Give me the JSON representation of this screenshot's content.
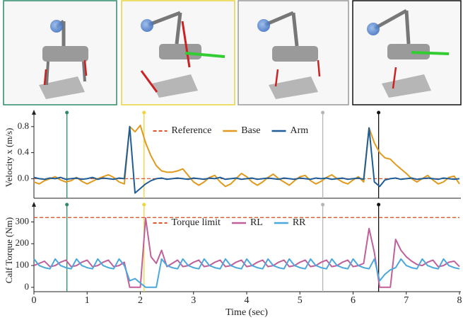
{
  "chart_data": [
    {
      "type": "line",
      "y_label": "Velocity x (m/s)",
      "xlim": [
        0,
        8
      ],
      "ylim": [
        -0.3,
        0.95
      ],
      "yticks": [
        {
          "value": 0,
          "label": "0.0"
        },
        0.4,
        0.8
      ],
      "legend": "upper center",
      "reference_line": {
        "name": "Reference",
        "y": 0,
        "color": "#d9572b"
      },
      "event_lines": [
        {
          "x": 0.62,
          "color": "#2e8b6a"
        },
        {
          "x": 2.07,
          "color": "#f2d33a"
        },
        {
          "x": 5.43,
          "color": "#b5b5b5"
        },
        {
          "x": 6.48,
          "color": "#111111"
        }
      ],
      "x": [
        0,
        0.1,
        0.2,
        0.3,
        0.4,
        0.5,
        0.6,
        0.7,
        0.8,
        0.9,
        1,
        1.1,
        1.2,
        1.3,
        1.4,
        1.5,
        1.6,
        1.7,
        1.8,
        1.9,
        2,
        2.1,
        2.2,
        2.3,
        2.4,
        2.5,
        2.6,
        2.7,
        2.8,
        2.9,
        3,
        3.1,
        3.2,
        3.3,
        3.4,
        3.5,
        3.6,
        3.7,
        3.8,
        3.9,
        4,
        4.1,
        4.2,
        4.3,
        4.4,
        4.5,
        4.6,
        4.7,
        4.8,
        4.9,
        5,
        5.1,
        5.2,
        5.3,
        5.4,
        5.5,
        5.6,
        5.7,
        5.8,
        5.9,
        6,
        6.1,
        6.2,
        6.3,
        6.4,
        6.5,
        6.6,
        6.7,
        6.8,
        6.9,
        7,
        7.1,
        7.2,
        7.3,
        7.4,
        7.5,
        7.6,
        7.7,
        7.8,
        7.9,
        8
      ],
      "series": [
        {
          "name": "Base",
          "color": "#e09a1e",
          "values": [
            -0.05,
            -0.08,
            -0.03,
            0.0,
            0.03,
            -0.02,
            -0.05,
            -0.03,
            0.02,
            -0.04,
            -0.08,
            -0.04,
            0.0,
            0.03,
            0.06,
            0.02,
            -0.05,
            -0.08,
            0.8,
            0.72,
            0.82,
            0.55,
            0.35,
            0.2,
            0.12,
            0.1,
            0.1,
            0.12,
            0.15,
            0.05,
            -0.05,
            -0.1,
            -0.05,
            0.02,
            0.05,
            -0.05,
            -0.12,
            -0.08,
            0.0,
            0.08,
            0.03,
            -0.05,
            -0.1,
            -0.05,
            0.02,
            0.07,
            0.0,
            -0.05,
            -0.1,
            -0.03,
            0.03,
            0.05,
            -0.03,
            -0.08,
            -0.04,
            0.02,
            0.06,
            0.0,
            -0.05,
            -0.08,
            -0.02,
            0.03,
            -0.05,
            0.78,
            0.55,
            0.4,
            0.32,
            0.3,
            0.22,
            0.15,
            0.08,
            0.0,
            -0.05,
            0.0,
            0.05,
            -0.02,
            -0.08,
            -0.05,
            0.02,
            0.04,
            -0.08
          ]
        },
        {
          "name": "Arm",
          "color": "#1f5d99",
          "values": [
            0.02,
            0.0,
            -0.01,
            0.01,
            0.0,
            0.02,
            -0.01,
            0.0,
            0.01,
            -0.01,
            0.0,
            0.02,
            -0.01,
            0.01,
            0.0,
            -0.01,
            0.01,
            0.0,
            0.8,
            -0.22,
            -0.15,
            -0.08,
            -0.03,
            0.0,
            0.01,
            -0.01,
            0.0,
            0.01,
            0.0,
            -0.01,
            0.01,
            0.0,
            -0.01,
            0.01,
            0.0,
            0.02,
            -0.01,
            0.0,
            0.01,
            -0.01,
            0.0,
            0.01,
            -0.01,
            0.0,
            0.01,
            0.0,
            -0.01,
            0.01,
            0.0,
            -0.01,
            0.01,
            0.0,
            -0.01,
            0.01,
            0.0,
            0.01,
            -0.01,
            0.0,
            0.01,
            -0.01,
            0.0,
            0.01,
            -0.01,
            0.78,
            -0.05,
            -0.12,
            -0.02,
            0.0,
            0.01,
            -0.01,
            0.0,
            0.01,
            -0.01,
            0.0,
            0.01,
            0.0,
            -0.01,
            0.01,
            0.0,
            -0.01,
            0.0
          ]
        }
      ]
    },
    {
      "type": "line",
      "y_label": "Calf Torque (Nm)",
      "x_label": "Time (sec)",
      "xlim": [
        0,
        8
      ],
      "ylim": [
        -20,
        360
      ],
      "xticks": [
        0,
        1,
        2,
        3,
        4,
        5,
        6,
        7,
        8
      ],
      "yticks": [
        0,
        100,
        200,
        300
      ],
      "legend": "upper center",
      "reference_line": {
        "name": "Torque limit",
        "y": 320,
        "color": "#d9572b"
      },
      "event_lines": [
        {
          "x": 0.62,
          "color": "#2e8b6a"
        },
        {
          "x": 2.07,
          "color": "#f2d33a"
        },
        {
          "x": 5.43,
          "color": "#b5b5b5"
        },
        {
          "x": 6.48,
          "color": "#111111"
        }
      ],
      "x": [
        0,
        0.1,
        0.2,
        0.3,
        0.4,
        0.5,
        0.6,
        0.7,
        0.8,
        0.9,
        1,
        1.1,
        1.2,
        1.3,
        1.4,
        1.5,
        1.6,
        1.7,
        1.8,
        1.9,
        2,
        2.1,
        2.2,
        2.3,
        2.4,
        2.5,
        2.6,
        2.7,
        2.8,
        2.9,
        3,
        3.1,
        3.2,
        3.3,
        3.4,
        3.5,
        3.6,
        3.7,
        3.8,
        3.9,
        4,
        4.1,
        4.2,
        4.3,
        4.4,
        4.5,
        4.6,
        4.7,
        4.8,
        4.9,
        5,
        5.1,
        5.2,
        5.3,
        5.4,
        5.5,
        5.6,
        5.7,
        5.8,
        5.9,
        6,
        6.1,
        6.2,
        6.3,
        6.4,
        6.5,
        6.6,
        6.7,
        6.8,
        6.9,
        7,
        7.1,
        7.2,
        7.3,
        7.4,
        7.5,
        7.6,
        7.7,
        7.8,
        7.9,
        8
      ],
      "series": [
        {
          "name": "RL",
          "color": "#c0609a",
          "values": [
            100,
            110,
            120,
            95,
            100,
            115,
            125,
            95,
            100,
            115,
            125,
            95,
            100,
            115,
            125,
            95,
            100,
            115,
            0,
            0,
            0,
            318,
            140,
            110,
            170,
            95,
            110,
            125,
            95,
            100,
            115,
            125,
            95,
            100,
            115,
            125,
            95,
            100,
            115,
            125,
            95,
            100,
            115,
            125,
            95,
            100,
            115,
            125,
            95,
            100,
            115,
            125,
            95,
            100,
            115,
            125,
            95,
            100,
            115,
            125,
            95,
            100,
            110,
            270,
            160,
            0,
            0,
            0,
            220,
            170,
            140,
            120,
            105,
            100,
            115,
            125,
            95,
            100,
            115,
            120,
            95
          ]
        },
        {
          "name": "RR",
          "color": "#4aa8dc",
          "values": [
            130,
            100,
            90,
            85,
            130,
            100,
            90,
            85,
            130,
            100,
            90,
            85,
            130,
            100,
            90,
            85,
            130,
            100,
            30,
            40,
            20,
            0,
            0,
            0,
            130,
            100,
            90,
            85,
            130,
            100,
            90,
            85,
            130,
            100,
            90,
            85,
            130,
            100,
            90,
            85,
            130,
            100,
            90,
            85,
            130,
            100,
            90,
            85,
            130,
            100,
            90,
            85,
            130,
            100,
            90,
            85,
            130,
            100,
            90,
            85,
            130,
            100,
            90,
            85,
            130,
            30,
            60,
            80,
            90,
            130,
            100,
            90,
            85,
            130,
            100,
            90,
            85,
            130,
            100,
            90,
            85
          ]
        }
      ]
    }
  ]
}
